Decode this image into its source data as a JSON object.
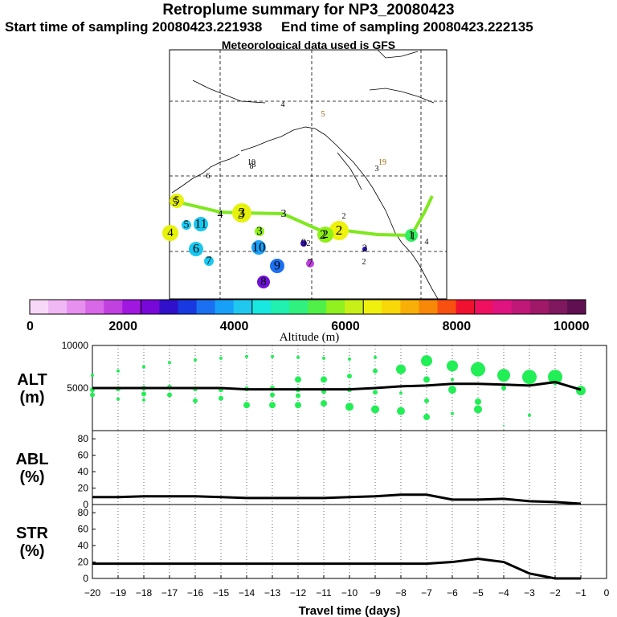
{
  "header": {
    "title": "Retroplume summary for NP3_20080423",
    "start_label": "Start time of sampling 20080423.221938",
    "end_label": "End time of sampling 20080423.222135",
    "met_label": "Meteorological data used is GFS"
  },
  "colors": {
    "track": "#7ee81e",
    "scatter": "#22ee55",
    "line": "#000000"
  },
  "chart_data": [
    {
      "type": "map",
      "name": "plume-map",
      "colorbar": {
        "title": "Altitude (m)",
        "range": [
          0,
          10000
        ],
        "ticks": [
          "0",
          "2000",
          "4000",
          "6000",
          "8000",
          "10000"
        ],
        "colors": [
          "#f8d8f8",
          "#f0b8f4",
          "#e890f0",
          "#d868e8",
          "#c040e0",
          "#a018e0",
          "#7808d8",
          "#3010c8",
          "#1838e0",
          "#1a70f0",
          "#18a0f8",
          "#20c8f0",
          "#18e8e0",
          "#20f0b0",
          "#30f080",
          "#50f048",
          "#90f020",
          "#c8f018",
          "#f0f010",
          "#f8d808",
          "#f8b008",
          "#f88808",
          "#f85010",
          "#f01030",
          "#f01060",
          "#e01480",
          "#c01878",
          "#a01868",
          "#801860",
          "#601050"
        ]
      },
      "track_labels": [
        "1",
        "2",
        "3",
        "3",
        "4",
        "5"
      ],
      "markers": [
        {
          "label": "1",
          "color": "#30ef60"
        },
        {
          "label": "2",
          "color": "#eef20c"
        },
        {
          "label": "3",
          "color": "#e6f20c"
        },
        {
          "label": "4",
          "color": "#e6f20c"
        },
        {
          "label": "5",
          "color": "#e6f20c"
        },
        {
          "label": "6",
          "color": "#18c8f0"
        },
        {
          "label": "7",
          "color": "#18c8f0"
        },
        {
          "label": "8",
          "color": "#7010d8"
        },
        {
          "label": "9",
          "color": "#1a70f0"
        },
        {
          "label": "10",
          "color": "#1aa0f8"
        },
        {
          "label": "11",
          "color": "#18c8f0"
        },
        {
          "label": "5",
          "color": "#18c8f0"
        },
        {
          "label": "3",
          "color": "#8ef018"
        },
        {
          "label": "7",
          "color": "#c040e0"
        },
        {
          "label": "9",
          "color": "#3a10c8"
        },
        {
          "label": "2",
          "color": "#8ef018"
        },
        {
          "label": "2",
          "color": "#3010c8"
        }
      ],
      "small_labels": [
        "4",
        "5",
        "8",
        "3",
        "19",
        "4",
        "2",
        "2",
        "2",
        "10",
        "6",
        "3"
      ]
    },
    {
      "type": "scatter",
      "name": "alt-panel",
      "ylabel": "ALT\n(m)",
      "ylim": [
        0,
        10000
      ],
      "yticks": [
        "5000",
        "10000"
      ],
      "x": [
        -20,
        -19,
        -18,
        -17,
        -16,
        -15,
        -14,
        -13,
        -12,
        -11,
        -10,
        -9,
        -8,
        -7,
        -6,
        -5,
        -4,
        -3,
        -2,
        -1
      ],
      "median_line": [
        5000,
        5000,
        5000,
        5000,
        5000,
        5000,
        4850,
        4850,
        4850,
        4850,
        4850,
        5000,
        5200,
        5300,
        5500,
        5500,
        5400,
        5300,
        5700,
        4800
      ],
      "points": [
        {
          "x": -20,
          "y": 6500,
          "s": 2
        },
        {
          "x": -20,
          "y": 4800,
          "s": 3
        },
        {
          "x": -20,
          "y": 4200,
          "s": 3
        },
        {
          "x": -19,
          "y": 7000,
          "s": 2
        },
        {
          "x": -19,
          "y": 4900,
          "s": 3
        },
        {
          "x": -19,
          "y": 3700,
          "s": 2
        },
        {
          "x": -18,
          "y": 7500,
          "s": 2
        },
        {
          "x": -18,
          "y": 5000,
          "s": 3
        },
        {
          "x": -18,
          "y": 4300,
          "s": 3
        },
        {
          "x": -18,
          "y": 3600,
          "s": 2
        },
        {
          "x": -17,
          "y": 8000,
          "s": 2
        },
        {
          "x": -17,
          "y": 5100,
          "s": 3
        },
        {
          "x": -17,
          "y": 4200,
          "s": 3
        },
        {
          "x": -16,
          "y": 8300,
          "s": 2
        },
        {
          "x": -16,
          "y": 4900,
          "s": 3
        },
        {
          "x": -16,
          "y": 3500,
          "s": 3
        },
        {
          "x": -15,
          "y": 8500,
          "s": 2
        },
        {
          "x": -15,
          "y": 4800,
          "s": 3
        },
        {
          "x": -15,
          "y": 3800,
          "s": 3
        },
        {
          "x": -14,
          "y": 8700,
          "s": 2
        },
        {
          "x": -14,
          "y": 4900,
          "s": 3
        },
        {
          "x": -14,
          "y": 3000,
          "s": 4
        },
        {
          "x": -13,
          "y": 8700,
          "s": 2
        },
        {
          "x": -13,
          "y": 5000,
          "s": 3
        },
        {
          "x": -13,
          "y": 4200,
          "s": 3
        },
        {
          "x": -13,
          "y": 3000,
          "s": 4
        },
        {
          "x": -12,
          "y": 8600,
          "s": 2
        },
        {
          "x": -12,
          "y": 6000,
          "s": 4
        },
        {
          "x": -12,
          "y": 4800,
          "s": 3
        },
        {
          "x": -12,
          "y": 4100,
          "s": 3
        },
        {
          "x": -12,
          "y": 3000,
          "s": 4
        },
        {
          "x": -11,
          "y": 8500,
          "s": 2
        },
        {
          "x": -11,
          "y": 6000,
          "s": 4
        },
        {
          "x": -11,
          "y": 4600,
          "s": 3
        },
        {
          "x": -11,
          "y": 3200,
          "s": 4
        },
        {
          "x": -10,
          "y": 8400,
          "s": 2
        },
        {
          "x": -10,
          "y": 6400,
          "s": 3
        },
        {
          "x": -10,
          "y": 4800,
          "s": 3
        },
        {
          "x": -10,
          "y": 2800,
          "s": 5
        },
        {
          "x": -9,
          "y": 8600,
          "s": 2
        },
        {
          "x": -9,
          "y": 7000,
          "s": 3
        },
        {
          "x": -9,
          "y": 4500,
          "s": 3
        },
        {
          "x": -9,
          "y": 2500,
          "s": 5
        },
        {
          "x": -8,
          "y": 7200,
          "s": 6
        },
        {
          "x": -8,
          "y": 4400,
          "s": 2
        },
        {
          "x": -8,
          "y": 2300,
          "s": 5
        },
        {
          "x": -7,
          "y": 8200,
          "s": 7
        },
        {
          "x": -7,
          "y": 6000,
          "s": 4
        },
        {
          "x": -7,
          "y": 3500,
          "s": 3
        },
        {
          "x": -7,
          "y": 1600,
          "s": 4
        },
        {
          "x": -6,
          "y": 7600,
          "s": 7
        },
        {
          "x": -6,
          "y": 6000,
          "s": 2
        },
        {
          "x": -6,
          "y": 4800,
          "s": 5
        },
        {
          "x": -6,
          "y": 2000,
          "s": 2
        },
        {
          "x": -5,
          "y": 7200,
          "s": 9
        },
        {
          "x": -5,
          "y": 3400,
          "s": 4
        },
        {
          "x": -5,
          "y": 2500,
          "s": 5
        },
        {
          "x": -4,
          "y": 6500,
          "s": 8
        },
        {
          "x": -4,
          "y": 5000,
          "s": 3
        },
        {
          "x": -4,
          "y": 600,
          "s": 1
        },
        {
          "x": -3,
          "y": 6300,
          "s": 9
        },
        {
          "x": -3,
          "y": 1800,
          "s": 2
        },
        {
          "x": -2,
          "y": 6300,
          "s": 9
        },
        {
          "x": -2,
          "y": 5500,
          "s": 2
        },
        {
          "x": -1,
          "y": 4700,
          "s": 6
        }
      ]
    },
    {
      "type": "line",
      "name": "abl-panel",
      "ylabel": "ABL\n(%)",
      "ylim": [
        0,
        90
      ],
      "yticks": [
        "0",
        "20",
        "40",
        "60",
        "80"
      ],
      "x": [
        -20,
        -19,
        -18,
        -17,
        -16,
        -15,
        -14,
        -13,
        -12,
        -11,
        -10,
        -9,
        -8,
        -7,
        -6,
        -5,
        -4,
        -3,
        -2,
        -1
      ],
      "values": [
        9,
        9,
        10,
        10,
        10,
        9,
        8,
        8,
        8,
        8,
        9,
        10,
        12,
        12,
        6,
        6,
        7,
        4,
        3,
        1
      ]
    },
    {
      "type": "line",
      "name": "str-panel",
      "ylabel": "STR\n(%)",
      "ylim": [
        0,
        90
      ],
      "yticks": [
        "0",
        "20",
        "40",
        "60",
        "80"
      ],
      "x": [
        -20,
        -19,
        -18,
        -17,
        -16,
        -15,
        -14,
        -13,
        -12,
        -11,
        -10,
        -9,
        -8,
        -7,
        -6,
        -5,
        -4,
        -3,
        -2,
        -1
      ],
      "values": [
        18,
        18,
        18,
        18,
        18,
        18,
        18,
        18,
        18,
        18,
        18,
        18,
        18,
        18,
        20,
        24,
        20,
        6,
        0,
        0
      ],
      "xlabel": "Travel time (days)",
      "xticks": [
        "−20",
        "−19",
        "−18",
        "−17",
        "−16",
        "−15",
        "−14",
        "−13",
        "−12",
        "−11",
        "−10",
        "−9",
        "−8",
        "−7",
        "−6",
        "−5",
        "−4",
        "−3",
        "−2",
        "−1",
        "0"
      ]
    }
  ]
}
